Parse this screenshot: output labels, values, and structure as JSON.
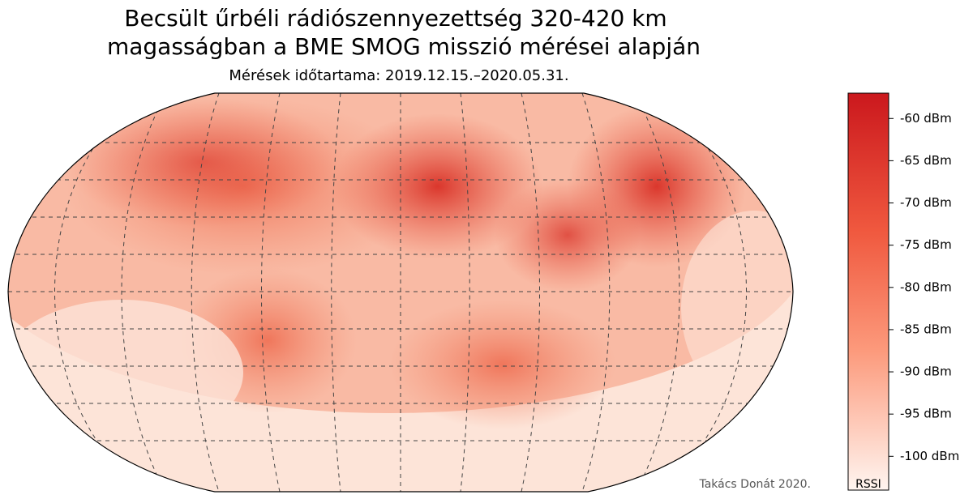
{
  "title": [
    "Becsült űrbéli rádiószennyezettség 320-420 km",
    "magasságban a BME SMOG misszió mérései alapján"
  ],
  "subtitle": "Mérések időtartama: 2019.12.15.–2020.05.31.",
  "colorbar": {
    "label": "RSSI",
    "lim": [
      -104,
      -57
    ],
    "ticks": [
      {
        "value": -60,
        "label": "-60 dBm"
      },
      {
        "value": -65,
        "label": "-65 dBm"
      },
      {
        "value": -70,
        "label": "-70 dBm"
      },
      {
        "value": -75,
        "label": "-75 dBm"
      },
      {
        "value": -80,
        "label": "-80 dBm"
      },
      {
        "value": -85,
        "label": "-85 dBm"
      },
      {
        "value": -90,
        "label": "-90 dBm"
      },
      {
        "value": -95,
        "label": "-95 dBm"
      },
      {
        "value": -100,
        "label": "-100 dBm"
      }
    ]
  },
  "credit": "Takács Donát 2020."
}
